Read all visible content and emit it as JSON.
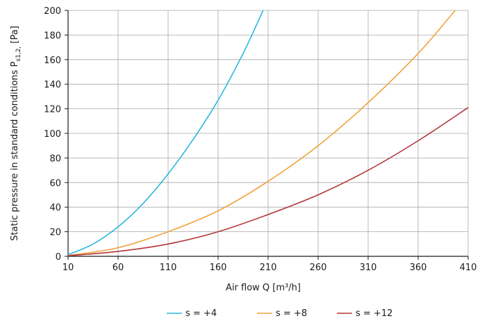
{
  "chart_data": {
    "type": "line",
    "xlabel": "Air flow Q [m³/h]",
    "ylabel": "Static pressure in standard conditions P",
    "ylabel_sub": "s1,2,",
    "ylabel_unit": " [Pa]",
    "xlim": [
      10,
      410
    ],
    "ylim": [
      0,
      200
    ],
    "x_ticks": [
      10,
      60,
      110,
      160,
      210,
      260,
      310,
      360,
      410
    ],
    "y_ticks": [
      0,
      20,
      40,
      60,
      80,
      100,
      120,
      140,
      160,
      180,
      200
    ],
    "grid": true,
    "legend_position": "bottom-center",
    "series": [
      {
        "name": "s = +4",
        "color": "#2bb6e0",
        "x": [
          10,
          35,
          60,
          85,
          110,
          135,
          160,
          185,
          205
        ],
        "y": [
          1.3,
          10,
          24,
          43,
          67,
          95,
          127,
          165,
          200
        ]
      },
      {
        "name": "s = +8",
        "color": "#f0a23a",
        "x": [
          10,
          60,
          110,
          160,
          210,
          260,
          310,
          360,
          397
        ],
        "y": [
          0.6,
          7,
          20,
          37,
          61,
          90,
          125,
          165,
          200
        ]
      },
      {
        "name": "s = +12",
        "color": "#b3343a",
        "x": [
          10,
          60,
          110,
          160,
          210,
          260,
          310,
          360,
          410
        ],
        "y": [
          0.4,
          4,
          10,
          20,
          34,
          50,
          70,
          94,
          121
        ]
      }
    ]
  }
}
